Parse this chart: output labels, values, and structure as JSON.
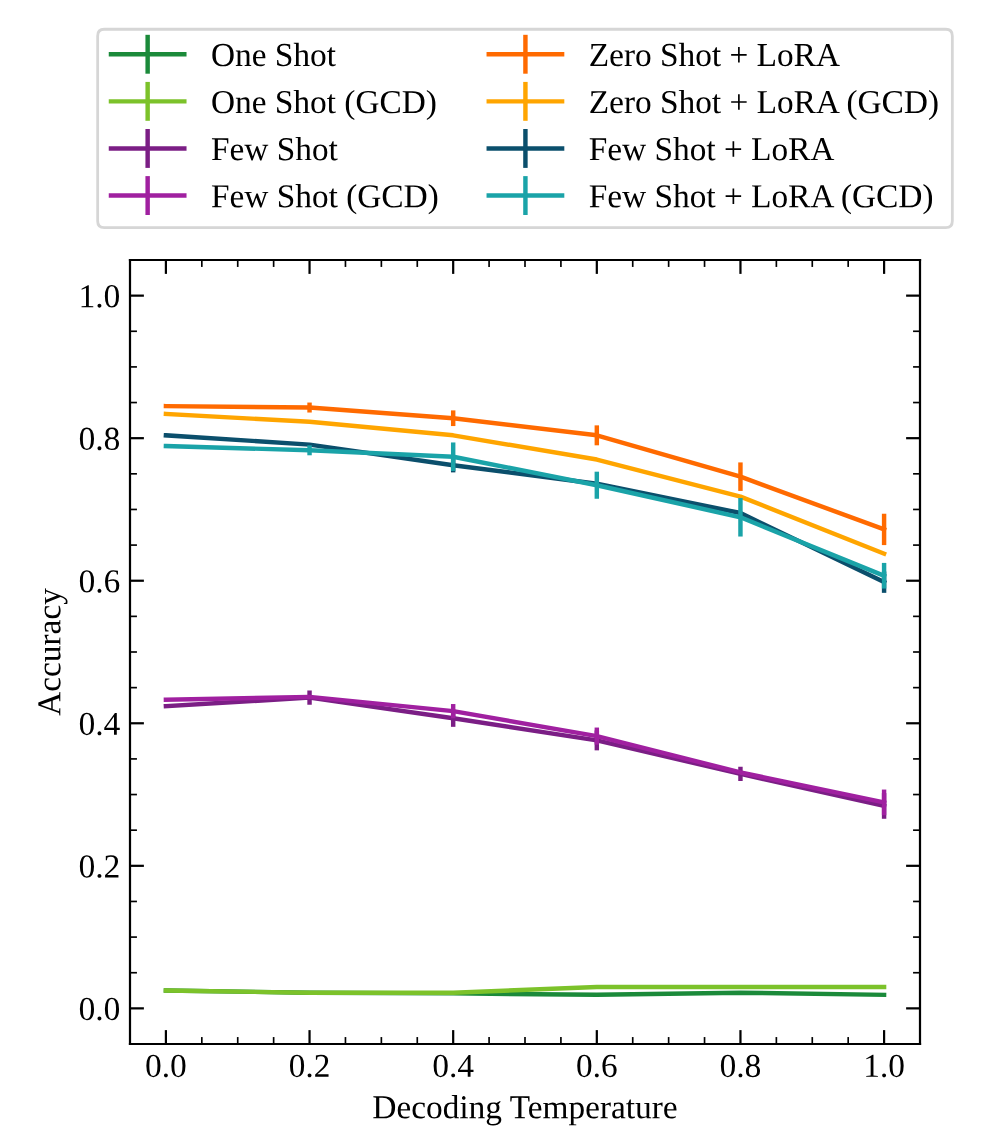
{
  "chart_data": {
    "type": "line",
    "xlabel": "Decoding Temperature",
    "ylabel": "Accuracy",
    "x": [
      0.0,
      0.2,
      0.4,
      0.6,
      0.8,
      1.0
    ],
    "xlim": [
      -0.05,
      1.05
    ],
    "xticks": [
      {
        "value": 0.0,
        "label": "0.0"
      },
      {
        "value": 0.2,
        "label": "0.2"
      },
      {
        "value": 0.4,
        "label": "0.4"
      },
      {
        "value": 0.6,
        "label": "0.6"
      },
      {
        "value": 0.8,
        "label": "0.8"
      },
      {
        "value": 1.0,
        "label": "1.0"
      }
    ],
    "ylim": [
      -0.05,
      1.05
    ],
    "yticks": [
      {
        "value": 0.0,
        "label": "0.0"
      },
      {
        "value": 0.2,
        "label": "0.2"
      },
      {
        "value": 0.4,
        "label": "0.4"
      },
      {
        "value": 0.6,
        "label": "0.6"
      },
      {
        "value": 0.8,
        "label": "0.8"
      },
      {
        "value": 1.0,
        "label": "1.0"
      }
    ],
    "grid": false,
    "legend": "top",
    "marker": "none",
    "line_style": "solid",
    "series": [
      {
        "name": "One Shot",
        "color": "#1b8a3a",
        "values": [
          0.025,
          0.022,
          0.021,
          0.019,
          0.022,
          0.019
        ]
      },
      {
        "name": "One Shot (GCD)",
        "color": "#7cc22a",
        "values": [
          0.025,
          0.022,
          0.022,
          0.03,
          0.03,
          0.03
        ]
      },
      {
        "name": "Few Shot",
        "color": "#7b1e85",
        "values": [
          0.424,
          0.436,
          0.407,
          0.376,
          0.329,
          0.284
        ],
        "errors": [
          null,
          0.01,
          0.012,
          0.014,
          0.01,
          0.018
        ]
      },
      {
        "name": "Few Shot (GCD)",
        "color": "#a020a0",
        "values": [
          0.433,
          0.437,
          0.417,
          0.382,
          0.331,
          0.289
        ],
        "errors": [
          null,
          null,
          0.01,
          0.012,
          null,
          0.018
        ]
      },
      {
        "name": "Zero Shot + LoRA",
        "color": "#ff6a00",
        "values": [
          0.845,
          0.843,
          0.828,
          0.804,
          0.746,
          0.672
        ],
        "errors": [
          null,
          0.007,
          0.011,
          0.014,
          0.02,
          0.022
        ]
      },
      {
        "name": "Zero Shot + LoRA (GCD)",
        "color": "#ffa500",
        "values": [
          0.834,
          0.823,
          0.804,
          0.77,
          0.718,
          0.638
        ]
      },
      {
        "name": "Few Shot + LoRA",
        "color": "#0b4f6c",
        "values": [
          0.804,
          0.791,
          0.762,
          0.736,
          0.695,
          0.598
        ],
        "errors": [
          null,
          null,
          0.01,
          null,
          null,
          0.015
        ]
      },
      {
        "name": "Few Shot + LoRA (GCD)",
        "color": "#1aa3a8",
        "values": [
          0.789,
          0.783,
          0.774,
          0.734,
          0.689,
          0.607
        ],
        "errors": [
          null,
          0.007,
          0.02,
          0.019,
          0.027,
          0.018
        ]
      }
    ]
  }
}
